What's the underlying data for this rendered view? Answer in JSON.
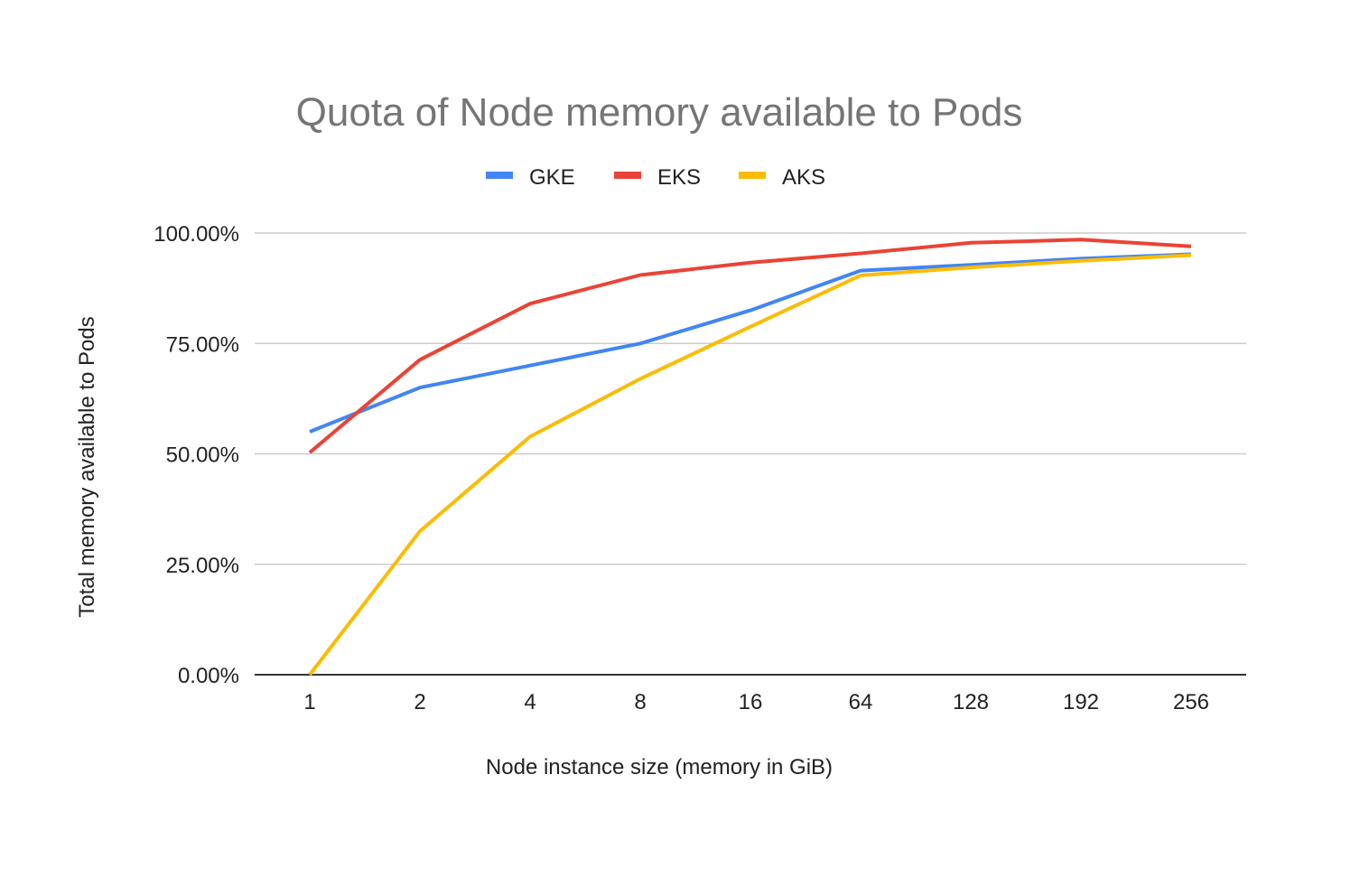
{
  "chart_data": {
    "type": "line",
    "title": "Quota of Node memory available to Pods",
    "xlabel": "Node instance size (memory in GiB)",
    "ylabel": "Total memory available to Pods",
    "categories": [
      "1",
      "2",
      "4",
      "8",
      "16",
      "64",
      "128",
      "192",
      "256"
    ],
    "y_ticks": [
      "0.00%",
      "25.00%",
      "50.00%",
      "75.00%",
      "100.00%"
    ],
    "ylim": [
      0,
      100
    ],
    "grid": true,
    "legend_position": "top",
    "series": [
      {
        "name": "GKE",
        "color": "#4285F4",
        "values": [
          55,
          65,
          70,
          75,
          82.5,
          91.5,
          92.8,
          94.2,
          95.2
        ]
      },
      {
        "name": "EKS",
        "color": "#EA4335",
        "values": [
          50.3,
          71.3,
          84,
          90.5,
          93.3,
          95.4,
          97.8,
          98.5,
          97
        ]
      },
      {
        "name": "AKS",
        "color": "#FBBC04",
        "values": [
          0,
          32.5,
          53.9,
          67,
          78.8,
          90.4,
          92.2,
          93.7,
          95
        ]
      }
    ]
  }
}
